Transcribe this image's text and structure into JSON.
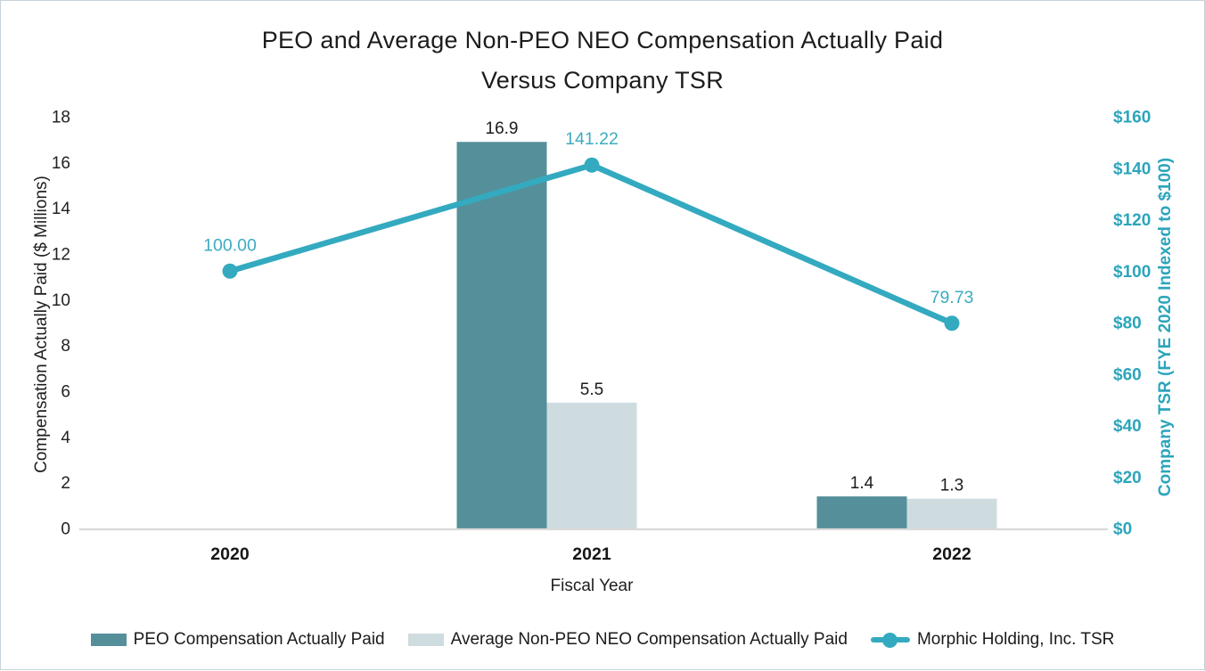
{
  "chart_data": {
    "type": "combo-bar-line",
    "title": {
      "line1": "PEO and Average Non-PEO NEO Compensation Actually Paid",
      "line2": "Versus Company TSR"
    },
    "categories": [
      "2020",
      "2021",
      "2022"
    ],
    "series": [
      {
        "name": "PEO Compensation Actually Paid",
        "type": "bar",
        "axis": "left",
        "values": [
          0,
          16.9,
          1.4
        ],
        "labels": [
          "",
          "16.9",
          "1.4"
        ]
      },
      {
        "name": "Average Non-PEO NEO Compensation Actually Paid",
        "type": "bar",
        "axis": "left",
        "values": [
          0,
          5.5,
          1.3
        ],
        "labels": [
          "",
          "5.5",
          "1.3"
        ]
      },
      {
        "name": "Morphic Holding, Inc. TSR",
        "type": "line",
        "axis": "right",
        "values": [
          100.0,
          141.22,
          79.73
        ],
        "labels": [
          "100.00",
          "141.22",
          "79.73"
        ]
      }
    ],
    "left_axis": {
      "label": "Compensation Actually Paid ($ Millions)",
      "min": 0,
      "max": 18,
      "step": 2,
      "tick_labels": [
        "0",
        "2",
        "4",
        "6",
        "8",
        "10",
        "12",
        "14",
        "16",
        "18"
      ]
    },
    "right_axis": {
      "label": "Company TSR (FYE 2020 Indexed to $100)",
      "min": 0,
      "max": 160,
      "step": 20,
      "tick_labels": [
        "$0",
        "$20",
        "$40",
        "$60",
        "$80",
        "$100",
        "$120",
        "$140",
        "$160"
      ]
    },
    "x_axis": {
      "label": "Fiscal Year"
    },
    "legend_position": "bottom",
    "gridlines": false,
    "colors": {
      "bar_dark": "#55909A",
      "bar_light": "#CEDCE0",
      "line": "#33AAC0",
      "line_label": "#3BACC1",
      "right_axis_text": "#2CA5BB",
      "text": "#1E1E1E",
      "axis_line": "#D9D9D9"
    }
  }
}
